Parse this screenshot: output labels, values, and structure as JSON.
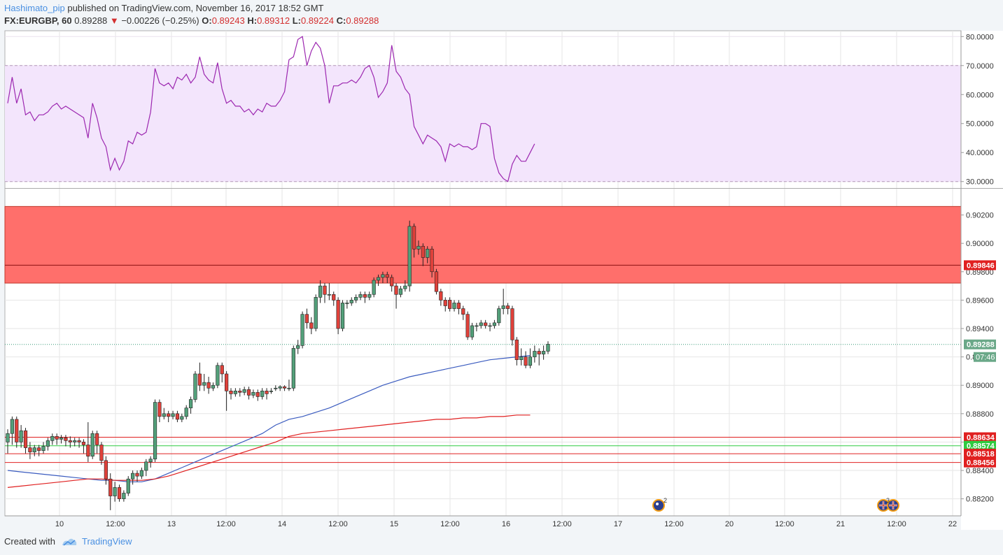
{
  "header": {
    "author": "Hashimato_pip",
    "published": "published on TradingView.com, November 16, 2017 18:52 GMT",
    "symbol": "FX:EURGBP, 60",
    "last": "0.89288",
    "change": "−0.00226 (−0.25%)",
    "o_label": "O:",
    "o": "0.89243",
    "h_label": "H:",
    "h": "0.89312",
    "l_label": "L:",
    "l": "0.89224",
    "c_label": "C:",
    "c": "0.89288"
  },
  "footer": {
    "created": "Created with",
    "brand": "TradingView"
  },
  "colors": {
    "up": "#53a07a",
    "down": "#e0413a",
    "rsi_line": "#9c27b0",
    "rsi_band": "#f3e5fc",
    "zone": "#ff6f6b",
    "ema_blue": "#3a5bbf",
    "ema_red": "#e02020",
    "support_green": "#2ecc40",
    "price_label": "#6aa888",
    "level_label": "#e02020"
  },
  "chart_data": {
    "type": "candlestick",
    "x_ticks": [
      "10",
      "12:00",
      "13",
      "12:00",
      "14",
      "12:00",
      "15",
      "12:00",
      "16",
      "12:00",
      "17",
      "12:00",
      "20",
      "12:00",
      "21",
      "12:00",
      "22"
    ],
    "y_ticks": [
      "0.88200",
      "0.88400",
      "0.88600",
      "0.88800",
      "0.89000",
      "0.89200",
      "0.89400",
      "0.89600",
      "0.89800",
      "0.90000",
      "0.90200"
    ],
    "y_range": [
      0.8808,
      0.9038
    ],
    "rsi": {
      "y_ticks": [
        "30.0000",
        "40.0000",
        "50.0000",
        "60.0000",
        "70.0000",
        "80.0000"
      ],
      "range": [
        28,
        82
      ],
      "overbought": 70,
      "oversold": 30,
      "values": [
        57,
        66,
        57,
        62,
        53,
        54,
        51,
        53,
        53,
        54,
        56,
        57,
        55,
        56,
        55,
        54,
        53,
        52,
        45,
        57,
        52,
        45,
        42,
        34,
        38,
        34,
        37,
        44,
        43,
        47,
        46,
        47,
        54,
        69,
        64,
        63,
        64,
        62,
        66,
        65,
        67,
        64,
        66,
        73,
        67,
        65,
        64,
        71,
        62,
        57,
        58,
        56,
        56,
        54,
        55,
        53,
        55,
        54,
        57,
        56,
        56,
        58,
        61,
        72,
        73,
        79,
        80,
        70,
        75,
        78,
        76,
        70,
        57,
        63,
        63,
        64,
        64,
        65,
        64,
        66,
        69,
        70,
        66,
        59,
        61,
        64,
        77,
        68,
        66,
        62,
        60,
        49,
        46,
        43,
        46,
        45,
        44,
        42,
        37,
        43,
        42,
        43,
        42,
        42,
        41,
        42,
        50,
        50,
        49,
        38,
        33,
        31,
        30,
        36,
        39,
        37,
        37,
        40,
        43
      ]
    },
    "candles": [
      [
        0.886,
        0.8866,
        0.8852,
        0.8869
      ],
      [
        0.8866,
        0.8876,
        0.8858,
        0.8878
      ],
      [
        0.8876,
        0.886,
        0.8856,
        0.8878
      ],
      [
        0.886,
        0.8868,
        0.8856,
        0.8872
      ],
      [
        0.8868,
        0.8856,
        0.8852,
        0.887
      ],
      [
        0.8856,
        0.8853,
        0.8848,
        0.886
      ],
      [
        0.8853,
        0.8856,
        0.885,
        0.8858
      ],
      [
        0.8856,
        0.8854,
        0.885,
        0.8858
      ],
      [
        0.8854,
        0.8857,
        0.8852,
        0.886
      ],
      [
        0.8857,
        0.8861,
        0.8854,
        0.8863
      ],
      [
        0.8861,
        0.8864,
        0.8858,
        0.8866
      ],
      [
        0.8864,
        0.8862,
        0.8858,
        0.8866
      ],
      [
        0.8862,
        0.8863,
        0.8859,
        0.8865
      ],
      [
        0.8863,
        0.8861,
        0.8857,
        0.8865
      ],
      [
        0.8861,
        0.886,
        0.8856,
        0.8864
      ],
      [
        0.886,
        0.8861,
        0.8857,
        0.8863
      ],
      [
        0.8861,
        0.886,
        0.8856,
        0.8863
      ],
      [
        0.886,
        0.8858,
        0.8852,
        0.8862
      ],
      [
        0.8858,
        0.885,
        0.8846,
        0.8874
      ],
      [
        0.885,
        0.8866,
        0.8848,
        0.8868
      ],
      [
        0.8866,
        0.8858,
        0.8852,
        0.8868
      ],
      [
        0.8858,
        0.8847,
        0.8844,
        0.886
      ],
      [
        0.8847,
        0.8834,
        0.883,
        0.885
      ],
      [
        0.8834,
        0.8822,
        0.8812,
        0.8838
      ],
      [
        0.8822,
        0.8828,
        0.8818,
        0.8832
      ],
      [
        0.8828,
        0.882,
        0.8818,
        0.883
      ],
      [
        0.882,
        0.8824,
        0.8818,
        0.8826
      ],
      [
        0.8824,
        0.8834,
        0.8822,
        0.8836
      ],
      [
        0.8834,
        0.8838,
        0.883,
        0.884
      ],
      [
        0.8838,
        0.8836,
        0.8832,
        0.884
      ],
      [
        0.8836,
        0.884,
        0.8834,
        0.8842
      ],
      [
        0.884,
        0.8846,
        0.8836,
        0.8848
      ],
      [
        0.8846,
        0.8848,
        0.8842,
        0.885
      ],
      [
        0.8848,
        0.8888,
        0.8846,
        0.889
      ],
      [
        0.8888,
        0.8878,
        0.8874,
        0.889
      ],
      [
        0.8878,
        0.888,
        0.8876,
        0.8884
      ],
      [
        0.888,
        0.8878,
        0.8874,
        0.8882
      ],
      [
        0.8878,
        0.888,
        0.8876,
        0.8882
      ],
      [
        0.888,
        0.8876,
        0.8874,
        0.8882
      ],
      [
        0.8876,
        0.8878,
        0.8874,
        0.888
      ],
      [
        0.8878,
        0.8884,
        0.8876,
        0.8886
      ],
      [
        0.8884,
        0.889,
        0.888,
        0.8892
      ],
      [
        0.889,
        0.8908,
        0.8888,
        0.891
      ],
      [
        0.8908,
        0.89,
        0.8896,
        0.8916
      ],
      [
        0.89,
        0.8902,
        0.8896,
        0.8908
      ],
      [
        0.8902,
        0.8898,
        0.8894,
        0.8906
      ],
      [
        0.8898,
        0.89,
        0.8896,
        0.8902
      ],
      [
        0.89,
        0.8914,
        0.8898,
        0.8916
      ],
      [
        0.8914,
        0.8908,
        0.8902,
        0.8916
      ],
      [
        0.8908,
        0.8896,
        0.8882,
        0.891
      ],
      [
        0.8896,
        0.8894,
        0.889,
        0.8898
      ],
      [
        0.8894,
        0.8896,
        0.8892,
        0.8898
      ],
      [
        0.8896,
        0.8895,
        0.8892,
        0.8898
      ],
      [
        0.8895,
        0.8897,
        0.8893,
        0.8899
      ],
      [
        0.8897,
        0.8893,
        0.889,
        0.8899
      ],
      [
        0.8893,
        0.8895,
        0.8891,
        0.8897
      ],
      [
        0.8895,
        0.8892,
        0.8889,
        0.8897
      ],
      [
        0.8892,
        0.8896,
        0.889,
        0.8898
      ],
      [
        0.8896,
        0.8894,
        0.889,
        0.8898
      ],
      [
        0.8896,
        0.8896,
        0.8894,
        0.8898
      ],
      [
        0.8898,
        0.8898,
        0.8896,
        0.89
      ],
      [
        0.8898,
        0.8899,
        0.8896,
        0.89
      ],
      [
        0.8899,
        0.8898,
        0.8896,
        0.89
      ],
      [
        0.8898,
        0.8898,
        0.8896,
        0.8904
      ],
      [
        0.8898,
        0.8926,
        0.8896,
        0.8928
      ],
      [
        0.8926,
        0.8928,
        0.8922,
        0.8932
      ],
      [
        0.8928,
        0.895,
        0.8926,
        0.8952
      ],
      [
        0.895,
        0.8944,
        0.894,
        0.8954
      ],
      [
        0.8944,
        0.894,
        0.8936,
        0.8948
      ],
      [
        0.894,
        0.8962,
        0.8938,
        0.8964
      ],
      [
        0.8962,
        0.897,
        0.8958,
        0.8974
      ],
      [
        0.897,
        0.8964,
        0.8958,
        0.8972
      ],
      [
        0.8964,
        0.8964,
        0.896,
        0.8972
      ],
      [
        0.8964,
        0.896,
        0.8956,
        0.8966
      ],
      [
        0.896,
        0.894,
        0.8936,
        0.8962
      ],
      [
        0.894,
        0.8958,
        0.8938,
        0.896
      ],
      [
        0.8958,
        0.8958,
        0.8954,
        0.896
      ],
      [
        0.8958,
        0.896,
        0.8956,
        0.8962
      ],
      [
        0.896,
        0.8962,
        0.8958,
        0.8964
      ],
      [
        0.8962,
        0.8964,
        0.896,
        0.8966
      ],
      [
        0.8964,
        0.8962,
        0.8958,
        0.8966
      ],
      [
        0.8962,
        0.8964,
        0.896,
        0.8966
      ],
      [
        0.8964,
        0.8974,
        0.8962,
        0.8976
      ],
      [
        0.8974,
        0.8976,
        0.897,
        0.8978
      ],
      [
        0.8976,
        0.8978,
        0.8972,
        0.898
      ],
      [
        0.8978,
        0.8976,
        0.8972,
        0.898
      ],
      [
        0.8976,
        0.897,
        0.8966,
        0.8978
      ],
      [
        0.897,
        0.8964,
        0.8954,
        0.8972
      ],
      [
        0.8964,
        0.8968,
        0.8962,
        0.897
      ],
      [
        0.8968,
        0.897,
        0.8966,
        0.8974
      ],
      [
        0.897,
        0.9012,
        0.8966,
        0.9016
      ],
      [
        0.9012,
        0.8996,
        0.899,
        0.9014
      ],
      [
        0.8996,
        0.8998,
        0.8992,
        0.9002
      ],
      [
        0.8998,
        0.899,
        0.8984,
        0.9
      ],
      [
        0.899,
        0.8996,
        0.8986,
        0.8998
      ],
      [
        0.8996,
        0.898,
        0.8976,
        0.8998
      ],
      [
        0.898,
        0.8966,
        0.8964,
        0.8982
      ],
      [
        0.8966,
        0.896,
        0.8956,
        0.8968
      ],
      [
        0.896,
        0.8956,
        0.8952,
        0.8962
      ],
      [
        0.896,
        0.8954,
        0.8952,
        0.8962
      ],
      [
        0.8954,
        0.8958,
        0.8952,
        0.896
      ],
      [
        0.8958,
        0.8954,
        0.895,
        0.896
      ],
      [
        0.8954,
        0.895,
        0.8946,
        0.8956
      ],
      [
        0.895,
        0.8934,
        0.8932,
        0.8952
      ],
      [
        0.8934,
        0.8942,
        0.8932,
        0.8944
      ],
      [
        0.8942,
        0.8942,
        0.8938,
        0.8944
      ],
      [
        0.8942,
        0.8944,
        0.894,
        0.8946
      ],
      [
        0.8944,
        0.8942,
        0.894,
        0.8946
      ],
      [
        0.8942,
        0.8942,
        0.8938,
        0.8944
      ],
      [
        0.8942,
        0.8944,
        0.894,
        0.8946
      ],
      [
        0.8944,
        0.8954,
        0.8942,
        0.8956
      ],
      [
        0.8954,
        0.8956,
        0.895,
        0.8968
      ],
      [
        0.8956,
        0.8954,
        0.895,
        0.8958
      ],
      [
        0.8954,
        0.8932,
        0.8928,
        0.8956
      ],
      [
        0.8932,
        0.8918,
        0.8914,
        0.8934
      ],
      [
        0.8918,
        0.892,
        0.8914,
        0.8926
      ],
      [
        0.892,
        0.8914,
        0.8912,
        0.8924
      ],
      [
        0.8914,
        0.892,
        0.8912,
        0.8926
      ],
      [
        0.892,
        0.8924,
        0.8916,
        0.8928
      ],
      [
        0.8924,
        0.8922,
        0.8914,
        0.8926
      ],
      [
        0.8922,
        0.8924,
        0.8918,
        0.8928
      ],
      [
        0.8924,
        0.8929,
        0.8922,
        0.8931
      ]
    ],
    "ema_blue": [
      0.884,
      0.8839,
      0.8838,
      0.8837,
      0.8836,
      0.8835,
      0.8834,
      0.8833,
      0.8833,
      0.8832,
      0.8832,
      0.8834,
      0.8838,
      0.8842,
      0.8846,
      0.885,
      0.8854,
      0.8858,
      0.8862,
      0.8866,
      0.8872,
      0.8876,
      0.8878,
      0.8881,
      0.8884,
      0.8888,
      0.8892,
      0.8896,
      0.89,
      0.8903,
      0.8906,
      0.8908,
      0.891,
      0.8912,
      0.8914,
      0.8916,
      0.8918,
      0.8919,
      0.892,
      0.8921
    ],
    "ema_red": [
      0.8828,
      0.8829,
      0.883,
      0.8831,
      0.8832,
      0.8833,
      0.8834,
      0.8834,
      0.8833,
      0.8833,
      0.8833,
      0.8834,
      0.8836,
      0.8839,
      0.8842,
      0.8845,
      0.8848,
      0.8851,
      0.8854,
      0.8857,
      0.886,
      0.8864,
      0.8866,
      0.8867,
      0.8868,
      0.8869,
      0.887,
      0.8871,
      0.8872,
      0.8873,
      0.8874,
      0.8875,
      0.8876,
      0.8876,
      0.8877,
      0.8877,
      0.8878,
      0.8878,
      0.8879,
      0.8879
    ],
    "resistance_zone": [
      0.8972,
      0.9026
    ],
    "zone_line": {
      "value": 0.89846,
      "label": "0.89846"
    },
    "levels": [
      {
        "value": 0.88634,
        "label": "0.88634",
        "color": "#e02020"
      },
      {
        "value": 0.88574,
        "label": "0.88574",
        "color": "#2ecc40"
      },
      {
        "value": 0.88518,
        "label": "0.88518",
        "color": "#e02020"
      },
      {
        "value": 0.88456,
        "label": "0.88456",
        "color": "#e02020"
      }
    ],
    "last_price": {
      "value": 0.89288,
      "label": "0.89288",
      "countdown": "07:46"
    },
    "events": [
      {
        "type": "news",
        "count": "2"
      },
      {
        "type": "uk-flag",
        "count": "3"
      }
    ]
  }
}
